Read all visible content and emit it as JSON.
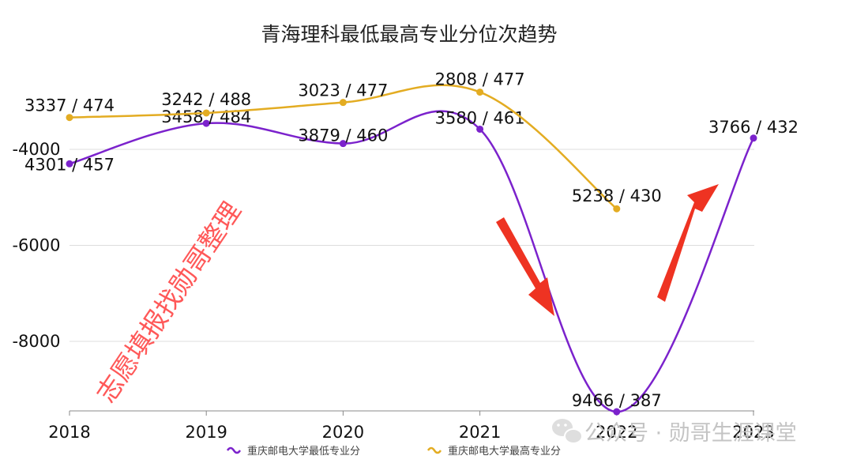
{
  "chart_data": {
    "type": "line",
    "title": "青海理科最低最高专业分位次趋势",
    "x": [
      "2018",
      "2019",
      "2020",
      "2021",
      "2022",
      "2023"
    ],
    "yticks": [
      "-4000",
      "-6000",
      "-8000"
    ],
    "ylim": [
      -9500,
      -2000
    ],
    "grid": true,
    "legend_position": "bottom",
    "series": [
      {
        "name": "重庆邮电大学最低专业分",
        "color": "#7b22cc",
        "values": [
          -4301,
          -3458,
          -3879,
          -3580,
          -9466,
          -3766
        ],
        "labels": [
          "4301 / 457",
          "3458 / 484",
          "3879 / 460",
          "3580 / 461",
          "9466 / 387",
          "3766 / 432"
        ]
      },
      {
        "name": "重庆邮电大学最高专业分",
        "color": "#e3ac22",
        "values": [
          -3337,
          -3242,
          -3023,
          -2808,
          -5238,
          null
        ],
        "labels": [
          "3337 / 474",
          "3242 / 488",
          "3023 / 477",
          "2808 / 477",
          "5238 / 430",
          ""
        ]
      }
    ]
  },
  "watermark": {
    "text": "志愿填报找勋哥整理",
    "color": "#ff2a2a"
  },
  "account": {
    "text": "公众号 · 勋哥生涯课堂",
    "icon": "wechat-icon"
  }
}
